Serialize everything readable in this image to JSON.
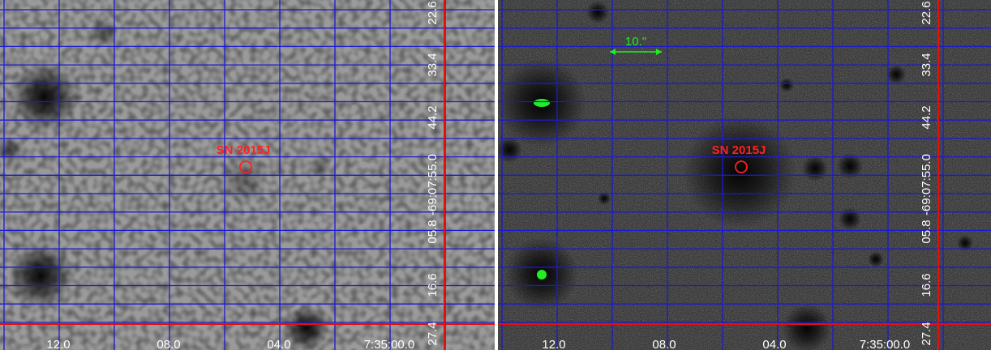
{
  "panels": [
    {
      "label": "SN 2015J",
      "x_ticks": [
        "12.0",
        "08.0",
        "04.0",
        "7:35:00.0"
      ],
      "y_ticks": [
        "22.6",
        "33.4",
        "44.2",
        "-69:07:55.0",
        "05.8",
        "16.6",
        "27.4"
      ]
    },
    {
      "label": "SN 2015J",
      "scale_bar": "10.\"",
      "x_ticks": [
        "12.0",
        "08.0",
        "04.0",
        "7:35:00.0"
      ],
      "y_ticks": [
        "22.6",
        "33.4",
        "44.2",
        "-69:07:55.0",
        "05.8",
        "16.6",
        "27.4"
      ]
    }
  ]
}
